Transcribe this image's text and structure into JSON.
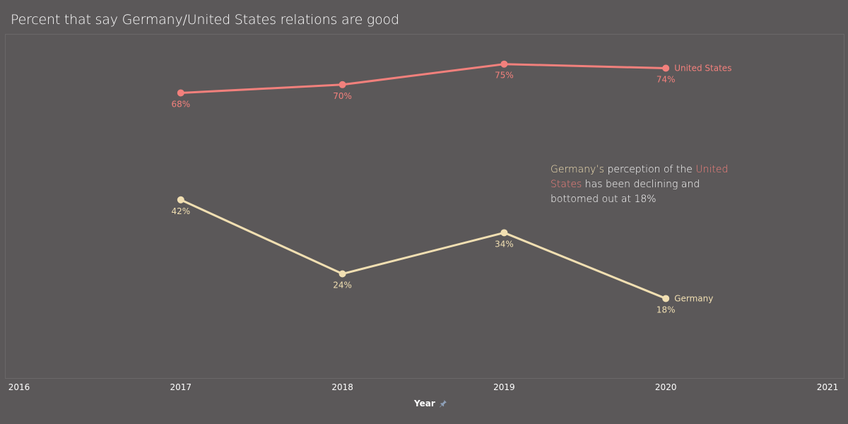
{
  "colors": {
    "background": "#5b5859",
    "us": "#f2807c",
    "germany": "#f1dfb2",
    "text": "#ffffff"
  },
  "chart_data": {
    "type": "line",
    "title": "Percent that say Germany/United States relations are good",
    "xlabel": "Year",
    "ylabel": "",
    "x_ticks": [
      "2016",
      "2017",
      "2018",
      "2019",
      "2020",
      "2021"
    ],
    "x": [
      2017,
      2018,
      2019,
      2020
    ],
    "xlim": [
      2016,
      2021
    ],
    "ylim": [
      0,
      80
    ],
    "grid": false,
    "series": [
      {
        "name": "United States",
        "values": [
          68,
          70,
          75,
          74
        ],
        "labels": [
          "68%",
          "70%",
          "75%",
          "74%"
        ],
        "color": "#f2807c"
      },
      {
        "name": "Germany",
        "values": [
          42,
          24,
          34,
          18
        ],
        "labels": [
          "42%",
          "24%",
          "34%",
          "18%"
        ],
        "color": "#f1dfb2"
      }
    ],
    "annotation": {
      "part1": "Germany’s",
      "part2": " perception of the ",
      "part3": "United States",
      "part4": " has been declining and bottomed out at 18%"
    }
  }
}
